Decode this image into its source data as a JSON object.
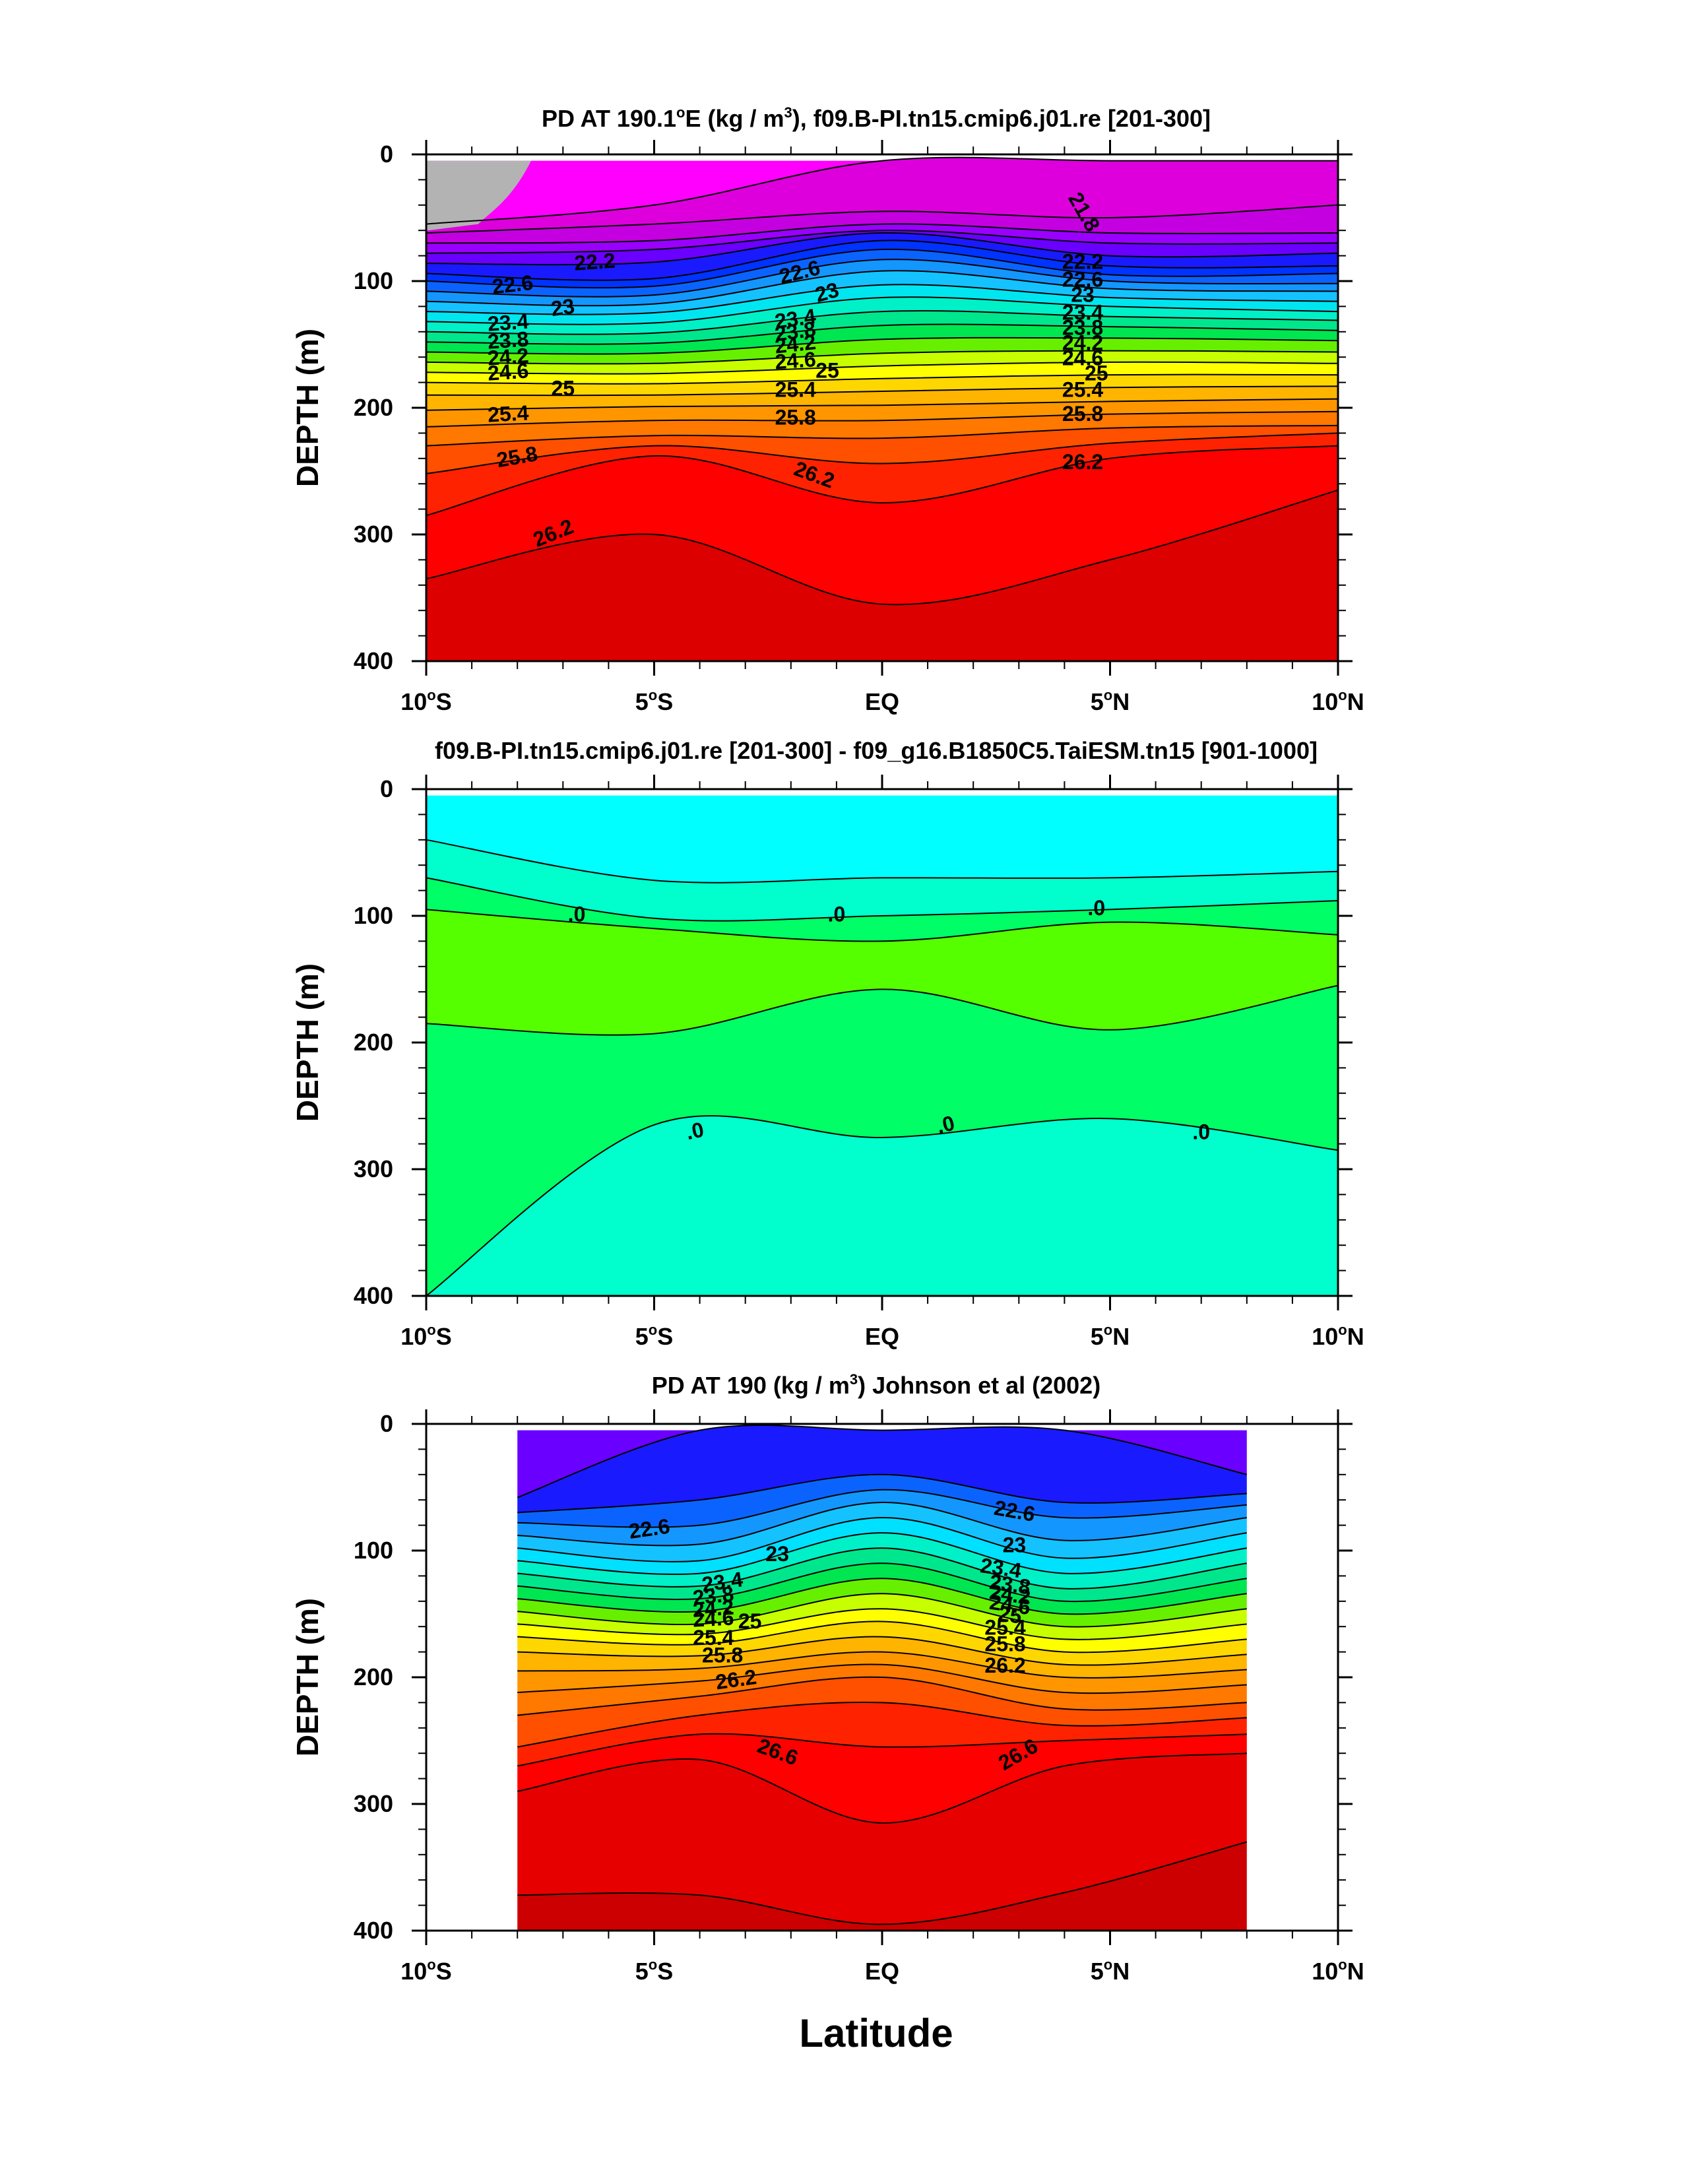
{
  "figure": {
    "xlabel": "Latitude"
  },
  "chart_data": [
    {
      "type": "contour",
      "title_main": "PD AT 190.1",
      "title_deg": "o",
      "title_mid": "E (kg / m",
      "title_sup": "3",
      "title_tail": "), f09.B-PI.tn15.cmip6.j01.re [201-300]",
      "ylabel": "DEPTH (m)",
      "x_tick_labels": [
        [
          "10",
          "o",
          "S"
        ],
        [
          "5",
          "o",
          "S"
        ],
        [
          "EQ",
          "",
          ""
        ],
        [
          "5",
          "o",
          "N"
        ],
        [
          "10",
          "o",
          "N"
        ]
      ],
      "x_ticks": [
        -10,
        -5,
        0,
        5,
        10
      ],
      "y_tick_labels": [
        "0",
        "100",
        "200",
        "300",
        "400"
      ],
      "y_ticks": [
        0,
        100,
        200,
        300,
        400
      ],
      "xlim": [
        -10,
        10
      ],
      "ylim": [
        400,
        0
      ],
      "data_extent": {
        "x": [
          -10,
          10
        ],
        "depth": [
          5,
          400
        ]
      },
      "colors": {
        "land_gray": "#b3b3b3",
        "bands": [
          "#ff00ff",
          "#dd00dd",
          "#c400e0",
          "#9a00ff",
          "#6a00ff",
          "#1a1aff",
          "#0033ff",
          "#0b63ff",
          "#1496ff",
          "#14c2ff",
          "#00e6f0",
          "#00f0c8",
          "#00e68c",
          "#00e650",
          "#66f000",
          "#c8ff00",
          "#ffff00",
          "#ffd700",
          "#ffb400",
          "#ff9600",
          "#ff7800",
          "#ff5000",
          "#ff2200",
          "#ff0000",
          "#dd0000"
        ]
      },
      "layer_interfaces": [
        {
          "depth": [
            5,
            5,
            5,
            5,
            5
          ]
        },
        {
          "depth": [
            55,
            40,
            5,
            5,
            5
          ]
        },
        {
          "depth": [
            62,
            55,
            45,
            50,
            40
          ]
        },
        {
          "depth": [
            70,
            68,
            55,
            62,
            62
          ]
        },
        {
          "depth": [
            78,
            75,
            60,
            70,
            70
          ]
        },
        {
          "depth": [
            86,
            85,
            62,
            80,
            78
          ]
        },
        {
          "depth": [
            94,
            98,
            68,
            88,
            88
          ]
        },
        {
          "depth": [
            100,
            104,
            75,
            95,
            94
          ]
        },
        {
          "depth": [
            108,
            111,
            83,
            100,
            102
          ]
        },
        {
          "depth": [
            116,
            118,
            92,
            106,
            108
          ]
        },
        {
          "depth": [
            124,
            125,
            103,
            113,
            116
          ]
        },
        {
          "depth": [
            132,
            133,
            113,
            120,
            124
          ]
        },
        {
          "depth": [
            140,
            141,
            124,
            128,
            131
          ]
        },
        {
          "depth": [
            148,
            149,
            135,
            136,
            139
          ]
        },
        {
          "depth": [
            156,
            157,
            146,
            145,
            147
          ]
        },
        {
          "depth": [
            164,
            165,
            157,
            155,
            156
          ]
        },
        {
          "depth": [
            172,
            173,
            167,
            164,
            165
          ]
        },
        {
          "depth": [
            180,
            181,
            177,
            174,
            174
          ]
        },
        {
          "depth": [
            190,
            190,
            187,
            184,
            183
          ]
        },
        {
          "depth": [
            202,
            199,
            198,
            195,
            193
          ]
        },
        {
          "depth": [
            215,
            210,
            210,
            205,
            203
          ]
        },
        {
          "depth": [
            230,
            222,
            224,
            216,
            214
          ]
        },
        {
          "depth": [
            252,
            230,
            244,
            228,
            220
          ]
        },
        {
          "depth": [
            285,
            238,
            275,
            240,
            230
          ]
        },
        {
          "depth": [
            335,
            300,
            355,
            320,
            265
          ]
        },
        {
          "depth": [
            400,
            400,
            400,
            400,
            400
          ]
        }
      ],
      "contour_labels": [
        {
          "text": "22.2",
          "x": -6.3,
          "y": 86,
          "angle": -4
        },
        {
          "text": "22.6",
          "x": -8.1,
          "y": 104,
          "angle": -6
        },
        {
          "text": "23",
          "x": -7.0,
          "y": 122,
          "angle": -8
        },
        {
          "text": "23.4",
          "x": -8.2,
          "y": 134,
          "angle": -4
        },
        {
          "text": "23.8",
          "x": -8.2,
          "y": 148,
          "angle": -4
        },
        {
          "text": "24.2",
          "x": -8.2,
          "y": 161,
          "angle": -4
        },
        {
          "text": "24.6",
          "x": -8.2,
          "y": 173,
          "angle": -4
        },
        {
          "text": "25",
          "x": -7.0,
          "y": 186,
          "angle": 0
        },
        {
          "text": "25.4",
          "x": -8.2,
          "y": 206,
          "angle": -3
        },
        {
          "text": "25.8",
          "x": -8.0,
          "y": 240,
          "angle": -10
        },
        {
          "text": "26.2",
          "x": -7.2,
          "y": 300,
          "angle": -22
        },
        {
          "text": "22.6",
          "x": -1.8,
          "y": 94,
          "angle": -14
        },
        {
          "text": "23",
          "x": -1.2,
          "y": 110,
          "angle": -16
        },
        {
          "text": "23.4",
          "x": -1.9,
          "y": 131,
          "angle": -8
        },
        {
          "text": "23.8",
          "x": -1.9,
          "y": 141,
          "angle": -8
        },
        {
          "text": "24.2",
          "x": -1.9,
          "y": 151,
          "angle": -6
        },
        {
          "text": "24.6",
          "x": -1.9,
          "y": 164,
          "angle": -4
        },
        {
          "text": "25",
          "x": -1.2,
          "y": 172,
          "angle": 0
        },
        {
          "text": "25.4",
          "x": -1.9,
          "y": 187,
          "angle": 0
        },
        {
          "text": "25.8",
          "x": -1.9,
          "y": 209,
          "angle": 0
        },
        {
          "text": "26.2",
          "x": -1.5,
          "y": 254,
          "angle": 20
        },
        {
          "text": "21.8",
          "x": 4.4,
          "y": 46,
          "angle": 60
        },
        {
          "text": "22.2",
          "x": 4.4,
          "y": 86,
          "angle": 0
        },
        {
          "text": "22.6",
          "x": 4.4,
          "y": 100,
          "angle": 0
        },
        {
          "text": "23",
          "x": 4.4,
          "y": 112,
          "angle": 0
        },
        {
          "text": "23.4",
          "x": 4.4,
          "y": 126,
          "angle": 0
        },
        {
          "text": "23.8",
          "x": 4.4,
          "y": 138,
          "angle": 0
        },
        {
          "text": "24.2",
          "x": 4.4,
          "y": 150,
          "angle": 0
        },
        {
          "text": "24.6",
          "x": 4.4,
          "y": 162,
          "angle": 0
        },
        {
          "text": "25",
          "x": 4.7,
          "y": 174,
          "angle": 0
        },
        {
          "text": "25.4",
          "x": 4.4,
          "y": 187,
          "angle": 0
        },
        {
          "text": "25.8",
          "x": 4.4,
          "y": 206,
          "angle": 0
        },
        {
          "text": "26.2",
          "x": 4.4,
          "y": 244,
          "angle": 0
        }
      ]
    },
    {
      "type": "contour",
      "title_main": "f09.B-PI.tn15.cmip6.j01.re [201-300] - f09_g16.B1850C5.TaiESM.tn15 [901-1000]",
      "title_deg": "",
      "title_mid": "",
      "title_sup": "",
      "title_tail": "",
      "ylabel": "DEPTH (m)",
      "x_tick_labels": [
        [
          "10",
          "o",
          "S"
        ],
        [
          "5",
          "o",
          "S"
        ],
        [
          "EQ",
          "",
          ""
        ],
        [
          "5",
          "o",
          "N"
        ],
        [
          "10",
          "o",
          "N"
        ]
      ],
      "x_ticks": [
        -10,
        -5,
        0,
        5,
        10
      ],
      "y_tick_labels": [
        "0",
        "100",
        "200",
        "300",
        "400"
      ],
      "y_ticks": [
        0,
        100,
        200,
        300,
        400
      ],
      "xlim": [
        -10,
        10
      ],
      "ylim": [
        400,
        0
      ],
      "data_extent": {
        "x": [
          -10,
          10
        ],
        "depth": [
          5,
          400
        ]
      },
      "colors": {
        "bands": [
          "#00ffff",
          "#00ffcc",
          "#00ff66",
          "#55ff00",
          "#00ff66",
          "#00ffcc"
        ]
      },
      "layer_interfaces": [
        {
          "depth": [
            5,
            5,
            5,
            5,
            5
          ]
        },
        {
          "depth": [
            40,
            72,
            70,
            70,
            65
          ]
        },
        {
          "depth": [
            70,
            102,
            100,
            95,
            88
          ]
        },
        {
          "depth": [
            95,
            110,
            120,
            105,
            115
          ]
        },
        {
          "depth": [
            185,
            193,
            158,
            190,
            155
          ]
        },
        {
          "depth": [
            400,
            265,
            275,
            260,
            285
          ]
        },
        {
          "depth": [
            400,
            400,
            400,
            400,
            400
          ]
        }
      ],
      "contour_labels": [
        {
          "text": ".0",
          "x": -6.7,
          "y": 100,
          "angle": 0
        },
        {
          "text": ".0",
          "x": -1.0,
          "y": 100,
          "angle": 0
        },
        {
          "text": ".0",
          "x": 4.7,
          "y": 95,
          "angle": 0
        },
        {
          "text": ".0",
          "x": -4.1,
          "y": 271,
          "angle": -12
        },
        {
          "text": ".0",
          "x": 1.4,
          "y": 266,
          "angle": -14
        },
        {
          "text": ".0",
          "x": 7.0,
          "y": 272,
          "angle": 0
        }
      ]
    },
    {
      "type": "contour",
      "title_main": "PD AT 190 (kg / m",
      "title_deg": "",
      "title_mid": "",
      "title_sup": "3",
      "title_tail": ") Johnson et al (2002)",
      "ylabel": "DEPTH (m)",
      "x_tick_labels": [
        [
          "10",
          "o",
          "S"
        ],
        [
          "5",
          "o",
          "S"
        ],
        [
          "EQ",
          "",
          ""
        ],
        [
          "5",
          "o",
          "N"
        ],
        [
          "10",
          "o",
          "N"
        ]
      ],
      "x_ticks": [
        -10,
        -5,
        0,
        5,
        10
      ],
      "y_tick_labels": [
        "0",
        "100",
        "200",
        "300",
        "400"
      ],
      "y_ticks": [
        0,
        100,
        200,
        300,
        400
      ],
      "xlim": [
        -10,
        10
      ],
      "ylim": [
        400,
        0
      ],
      "data_extent": {
        "x": [
          -8,
          8
        ],
        "depth": [
          5,
          400
        ]
      },
      "colors": {
        "bands": [
          "#6a00ff",
          "#1a1aff",
          "#0b63ff",
          "#1496ff",
          "#14c2ff",
          "#00e0ff",
          "#00f0c8",
          "#00e68c",
          "#00e650",
          "#66f000",
          "#c8ff00",
          "#ffff00",
          "#ffd700",
          "#ffb400",
          "#ff9600",
          "#ff7800",
          "#ff5000",
          "#ff2200",
          "#ff0000",
          "#e60000",
          "#cc0000",
          "#bb0000"
        ]
      },
      "layer_interfaces": [
        {
          "depth": [
            5,
            5,
            5,
            5,
            5
          ]
        },
        {
          "depth": [
            58,
            5,
            5,
            5,
            40
          ]
        },
        {
          "depth": [
            70,
            60,
            40,
            62,
            55
          ]
        },
        {
          "depth": [
            78,
            80,
            52,
            74,
            64
          ]
        },
        {
          "depth": [
            88,
            95,
            62,
            92,
            74
          ]
        },
        {
          "depth": [
            98,
            108,
            74,
            106,
            86
          ]
        },
        {
          "depth": [
            108,
            118,
            86,
            118,
            98
          ]
        },
        {
          "depth": [
            118,
            128,
            98,
            130,
            110
          ]
        },
        {
          "depth": [
            128,
            138,
            110,
            140,
            122
          ]
        },
        {
          "depth": [
            138,
            148,
            122,
            150,
            134
          ]
        },
        {
          "depth": [
            148,
            158,
            134,
            160,
            146
          ]
        },
        {
          "depth": [
            158,
            166,
            146,
            170,
            158
          ]
        },
        {
          "depth": [
            168,
            174,
            156,
            180,
            170
          ]
        },
        {
          "depth": [
            180,
            183,
            168,
            190,
            182
          ]
        },
        {
          "depth": [
            195,
            193,
            180,
            200,
            194
          ]
        },
        {
          "depth": [
            212,
            203,
            190,
            212,
            206
          ]
        },
        {
          "depth": [
            230,
            215,
            200,
            225,
            220
          ]
        },
        {
          "depth": [
            255,
            230,
            220,
            238,
            232
          ]
        },
        {
          "depth": [
            270,
            245,
            255,
            250,
            245
          ]
        },
        {
          "depth": [
            290,
            265,
            315,
            270,
            260
          ]
        },
        {
          "depth": [
            372,
            372,
            395,
            370,
            330
          ]
        },
        {
          "depth": [
            400,
            400,
            400,
            400,
            400
          ]
        }
      ],
      "contour_labels": [
        {
          "text": "22.6",
          "x": -5.1,
          "y": 84,
          "angle": -8
        },
        {
          "text": "23",
          "x": -2.3,
          "y": 104,
          "angle": 0
        },
        {
          "text": "23.4",
          "x": -3.5,
          "y": 126,
          "angle": -8
        },
        {
          "text": "23.8",
          "x": -3.7,
          "y": 137,
          "angle": -6
        },
        {
          "text": "24.2",
          "x": -3.7,
          "y": 147,
          "angle": -4
        },
        {
          "text": "24.6",
          "x": -3.7,
          "y": 155,
          "angle": -3
        },
        {
          "text": "25",
          "x": -2.9,
          "y": 157,
          "angle": 0
        },
        {
          "text": "25.4",
          "x": -3.7,
          "y": 170,
          "angle": 0
        },
        {
          "text": "25.8",
          "x": -3.5,
          "y": 184,
          "angle": 0
        },
        {
          "text": "26.2",
          "x": -3.2,
          "y": 203,
          "angle": -8
        },
        {
          "text": "26.6",
          "x": -2.3,
          "y": 260,
          "angle": 20
        },
        {
          "text": "22.6",
          "x": 2.9,
          "y": 70,
          "angle": 10
        },
        {
          "text": "23",
          "x": 2.9,
          "y": 97,
          "angle": 0
        },
        {
          "text": "23.4",
          "x": 2.6,
          "y": 115,
          "angle": 8
        },
        {
          "text": "23.8",
          "x": 2.8,
          "y": 128,
          "angle": 8
        },
        {
          "text": "24.2",
          "x": 2.8,
          "y": 136,
          "angle": 8
        },
        {
          "text": "24.6",
          "x": 2.8,
          "y": 144,
          "angle": 8
        },
        {
          "text": "25",
          "x": 2.8,
          "y": 152,
          "angle": 8
        },
        {
          "text": "25.4",
          "x": 2.7,
          "y": 162,
          "angle": 0
        },
        {
          "text": "25.8",
          "x": 2.7,
          "y": 175,
          "angle": 0
        },
        {
          "text": "26.2",
          "x": 2.7,
          "y": 192,
          "angle": 0
        },
        {
          "text": "26.6",
          "x": 3.0,
          "y": 262,
          "angle": -30
        }
      ]
    }
  ]
}
